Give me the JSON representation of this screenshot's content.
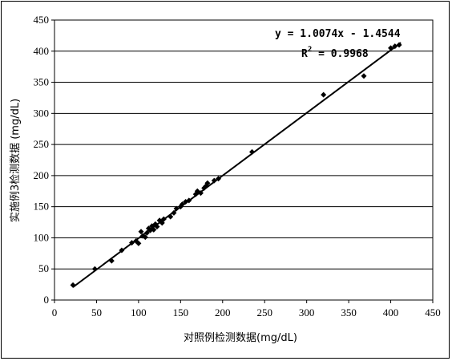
{
  "chart_data": {
    "type": "scatter",
    "xlabel": "对照例检测数据(mg/dL)",
    "ylabel": "实施例3检测数据 (mg/dL)",
    "xlim": [
      0,
      450
    ],
    "ylim": [
      0,
      450
    ],
    "x_ticks": [
      "0",
      "50",
      "100",
      "150",
      "200",
      "250",
      "300",
      "350",
      "400",
      "450"
    ],
    "y_ticks": [
      "0",
      "50",
      "100",
      "150",
      "200",
      "250",
      "300",
      "350",
      "400",
      "450"
    ],
    "grid": "horizontal",
    "marker_color": "#000000",
    "trendline": {
      "slope": 1.0074,
      "intercept": -1.4544,
      "x_range": [
        22,
        412
      ],
      "equation_text": "y = 1.0074x - 1.4544",
      "r2_label": "R",
      "r2_sup": "2",
      "r2_value": " = 0.9968"
    },
    "points": [
      [
        22,
        24
      ],
      [
        48,
        50
      ],
      [
        68,
        63
      ],
      [
        80,
        80
      ],
      [
        92,
        92
      ],
      [
        97,
        95
      ],
      [
        100,
        91
      ],
      [
        103,
        110
      ],
      [
        105,
        103
      ],
      [
        108,
        101
      ],
      [
        110,
        108
      ],
      [
        112,
        115
      ],
      [
        114,
        112
      ],
      [
        116,
        119
      ],
      [
        118,
        113
      ],
      [
        120,
        122
      ],
      [
        122,
        118
      ],
      [
        125,
        128
      ],
      [
        128,
        124
      ],
      [
        130,
        130
      ],
      [
        138,
        134
      ],
      [
        142,
        140
      ],
      [
        145,
        147
      ],
      [
        150,
        150
      ],
      [
        152,
        154
      ],
      [
        156,
        158
      ],
      [
        160,
        160
      ],
      [
        168,
        170
      ],
      [
        170,
        175
      ],
      [
        174,
        172
      ],
      [
        178,
        180
      ],
      [
        180,
        183
      ],
      [
        182,
        188
      ],
      [
        190,
        192
      ],
      [
        195,
        195
      ],
      [
        235,
        238
      ],
      [
        320,
        330
      ],
      [
        368,
        360
      ],
      [
        400,
        405
      ],
      [
        405,
        408
      ],
      [
        410,
        410
      ]
    ]
  }
}
